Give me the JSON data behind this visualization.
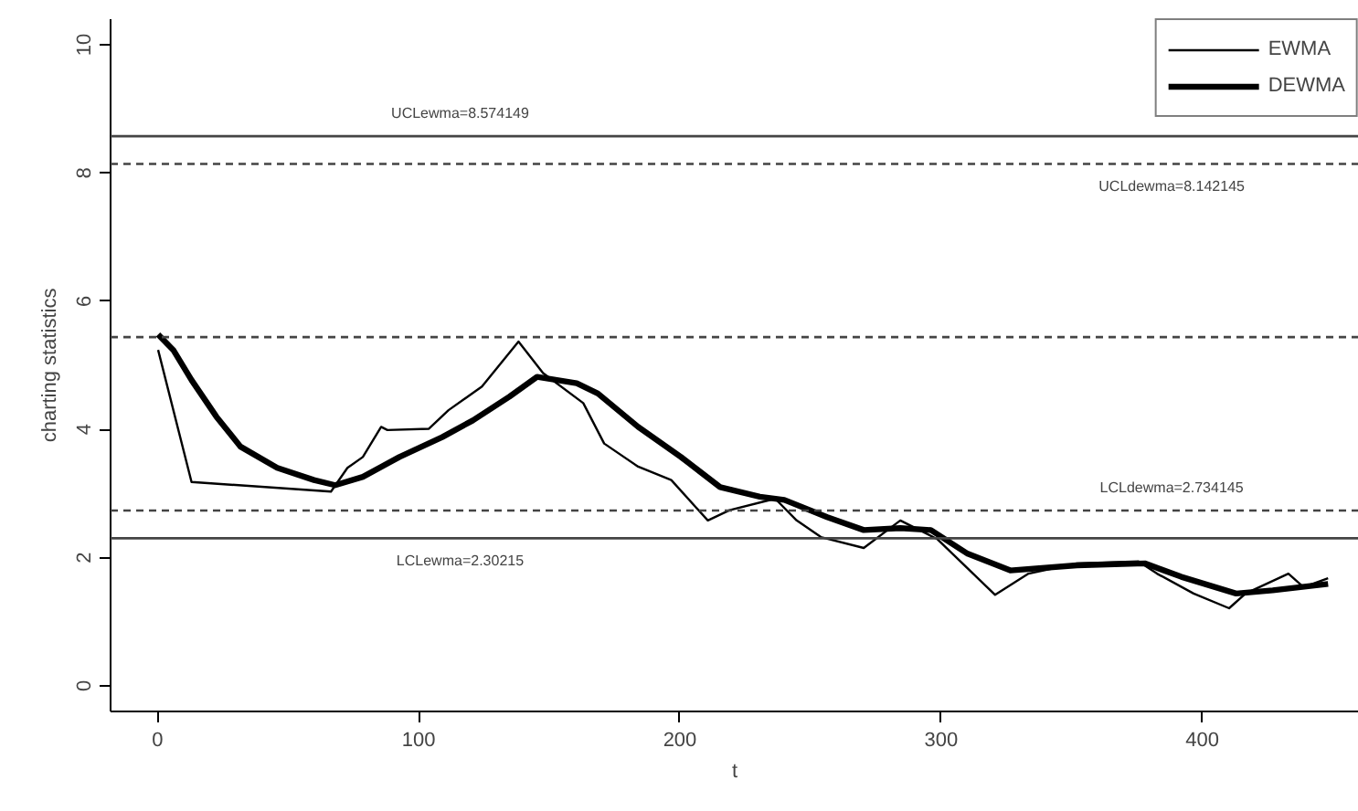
{
  "chart_data": {
    "type": "line",
    "xlabel": "t",
    "ylabel": "charting statistics",
    "xlim": [
      -18,
      460
    ],
    "ylim": [
      -0.4,
      10.4
    ],
    "xticks": [
      0,
      100,
      200,
      300,
      400
    ],
    "yticks": [
      0,
      2,
      4,
      6,
      8,
      10
    ],
    "grid": false,
    "legend": "top right",
    "marker": "none",
    "series": [
      {
        "name": "EWMA",
        "color": "#000000",
        "x": [
          0.2,
          13,
          66.4,
          72.7,
          78.6,
          85.6,
          88,
          103.9,
          111.4,
          124.2,
          138.2,
          147.6,
          163,
          171,
          184,
          196.7,
          210.7,
          219,
          236.5,
          244.7,
          254,
          270.4,
          284.4,
          298.5,
          320.7,
          333.5,
          352,
          375.6,
          382.7,
          396.7,
          410.3,
          416.6,
          433,
          438.8,
          448.2
        ],
        "values": [
          5.24,
          3.18,
          3.03,
          3.4,
          3.57,
          4.04,
          3.99,
          4.01,
          4.3,
          4.67,
          5.37,
          4.88,
          4.41,
          3.78,
          3.42,
          3.21,
          2.58,
          2.74,
          2.92,
          2.58,
          2.32,
          2.15,
          2.58,
          2.29,
          1.42,
          1.75,
          1.91,
          1.94,
          1.75,
          1.44,
          1.21,
          1.44,
          1.75,
          1.54,
          1.68
        ]
      },
      {
        "name": "DEWMA",
        "color": "#000000",
        "x": [
          0.2,
          6,
          13,
          22.5,
          31.8,
          45.8,
          59.9,
          68,
          78.6,
          92.6,
          109,
          120.7,
          134.7,
          145.3,
          160.5,
          168.6,
          184,
          200.4,
          215.4,
          230.6,
          240,
          256.4,
          270.4,
          284.4,
          296.1,
          310.2,
          326.5,
          352,
          378,
          392,
          413,
          427,
          448.2
        ],
        "values": [
          5.48,
          5.24,
          4.77,
          4.2,
          3.73,
          3.4,
          3.21,
          3.13,
          3.26,
          3.57,
          3.88,
          4.14,
          4.51,
          4.82,
          4.72,
          4.56,
          4.04,
          3.57,
          3.1,
          2.95,
          2.9,
          2.63,
          2.43,
          2.46,
          2.43,
          2.06,
          1.8,
          1.88,
          1.91,
          1.7,
          1.44,
          1.49,
          1.59
        ]
      }
    ],
    "ref_lines": [
      {
        "axis": "y",
        "value": 8.574149,
        "label": "UCLewma=8.574149",
        "line_style": "solid"
      },
      {
        "axis": "y",
        "value": 8.142145,
        "label": "UCLdewma=8.142145",
        "line_style": "dashed"
      },
      {
        "axis": "y",
        "value": 5.44,
        "label": null,
        "line_style": "dashed"
      },
      {
        "axis": "y",
        "value": 2.734145,
        "label": "LCLdewma=2.734145",
        "line_style": "dashed"
      },
      {
        "axis": "y",
        "value": 2.30215,
        "label": "LCLewma=2.30215",
        "line_style": "solid"
      }
    ]
  }
}
